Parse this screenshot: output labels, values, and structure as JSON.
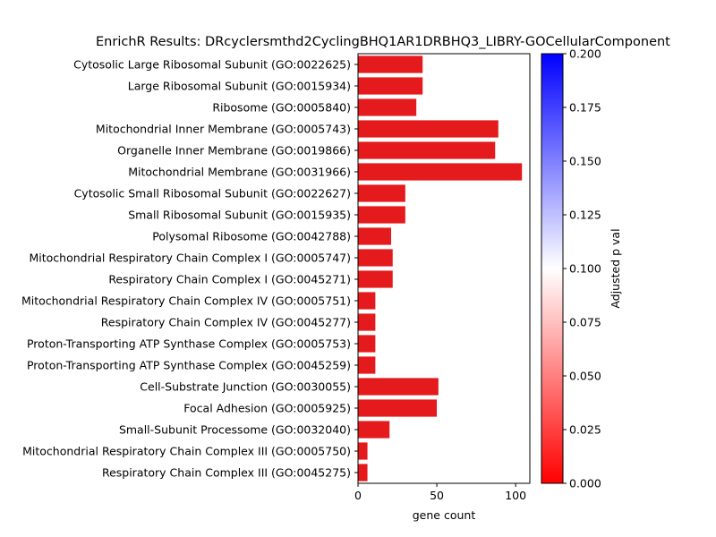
{
  "chart_data": {
    "type": "bar",
    "orientation": "horizontal",
    "title": "EnrichR Results: DRcyclersmthd2CyclingBHQ1AR1DRBHQ3_LIBRY-GOCellularComponent",
    "xlabel": "gene count",
    "ylabel": "",
    "xlim": [
      0,
      109
    ],
    "xticks": [
      0,
      50,
      100
    ],
    "bar_color": "#e41a1c",
    "categories": [
      "Cytosolic Large Ribosomal Subunit (GO:0022625)",
      "Large Ribosomal Subunit (GO:0015934)",
      "Ribosome (GO:0005840)",
      "Mitochondrial Inner Membrane (GO:0005743)",
      "Organelle Inner Membrane (GO:0019866)",
      "Mitochondrial Membrane (GO:0031966)",
      "Cytosolic Small Ribosomal Subunit (GO:0022627)",
      "Small Ribosomal Subunit (GO:0015935)",
      "Polysomal Ribosome (GO:0042788)",
      "Mitochondrial Respiratory Chain Complex I (GO:0005747)",
      "Respiratory Chain Complex I (GO:0045271)",
      "Mitochondrial Respiratory Chain Complex IV (GO:0005751)",
      "Respiratory Chain Complex IV (GO:0045277)",
      "Proton-Transporting ATP Synthase Complex (GO:0005753)",
      "Proton-Transporting ATP Synthase Complex (GO:0045259)",
      "Cell-Substrate Junction (GO:0030055)",
      "Focal Adhesion (GO:0005925)",
      "Small-Subunit Processome (GO:0032040)",
      "Mitochondrial Respiratory Chain Complex III (GO:0005750)",
      "Respiratory Chain Complex III (GO:0045275)"
    ],
    "values": [
      41,
      41,
      37,
      89,
      87,
      104,
      30,
      30,
      21,
      22,
      22,
      11,
      11,
      11,
      11,
      51,
      50,
      20,
      6,
      6
    ],
    "colorbar": {
      "label": "Adjusted p val",
      "range": [
        0,
        0.2
      ],
      "ticks": [
        "0.000",
        "0.025",
        "0.050",
        "0.075",
        "0.100",
        "0.125",
        "0.150",
        "0.175",
        "0.200"
      ],
      "colors": [
        "#ff0000",
        "#ffffff",
        "#0000ff"
      ]
    }
  }
}
